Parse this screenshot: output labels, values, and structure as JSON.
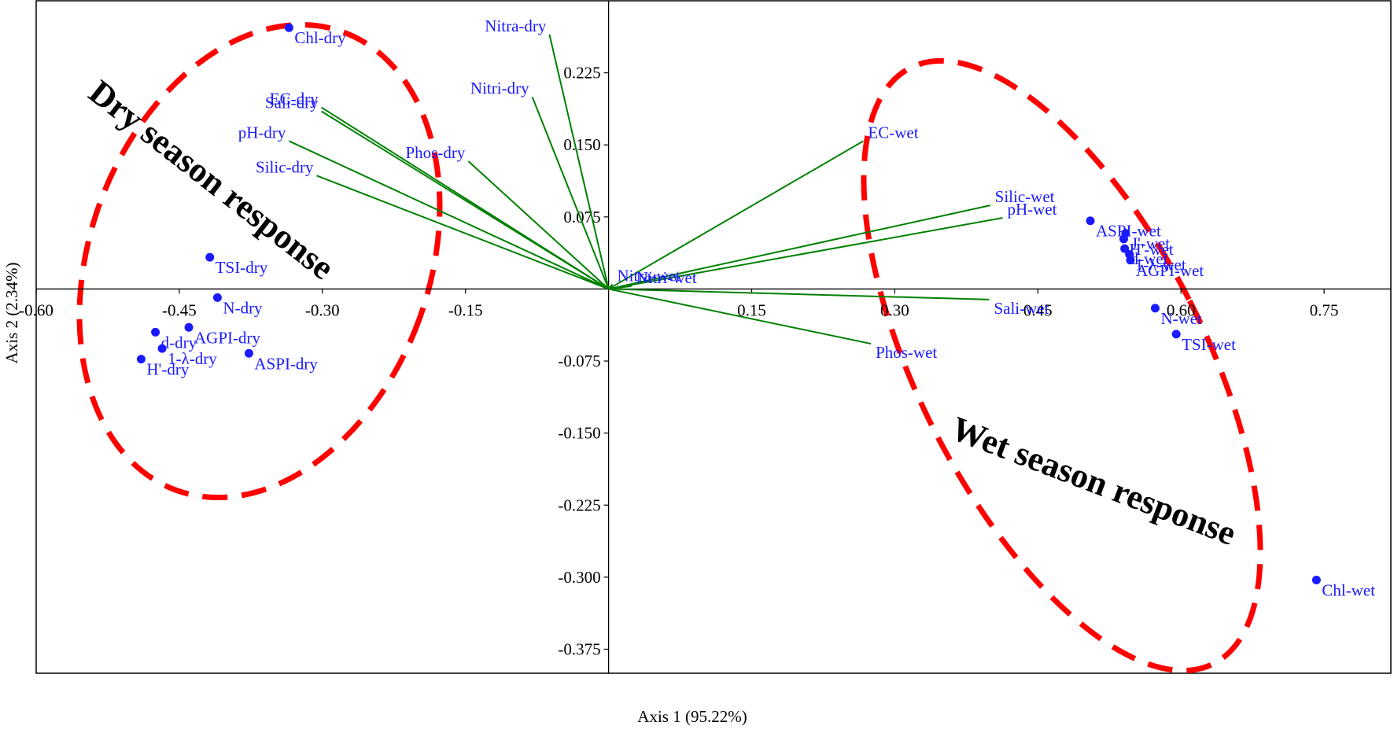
{
  "chart_data": {
    "type": "scatter",
    "subtype": "pca-biplot",
    "xlabel": "Axis 1 (95.22%)",
    "ylabel": "Axis 2 (2.34%)",
    "xlim": [
      -0.6,
      0.82
    ],
    "ylim": [
      -0.4,
      0.3
    ],
    "x_ticks": [
      {
        "value": -0.6,
        "label": "-0.60"
      },
      {
        "value": -0.45,
        "label": "-0.45"
      },
      {
        "value": -0.3,
        "label": "-0.30"
      },
      {
        "value": -0.15,
        "label": "-0.15"
      },
      {
        "value": 0.15,
        "label": "0.15"
      },
      {
        "value": 0.3,
        "label": "0.30"
      },
      {
        "value": 0.45,
        "label": "0.45"
      },
      {
        "value": 0.6,
        "label": "0.60"
      },
      {
        "value": 0.75,
        "label": "0.75"
      }
    ],
    "y_ticks": [
      {
        "value": 0.225,
        "label": "0.225"
      },
      {
        "value": 0.15,
        "label": "0.150"
      },
      {
        "value": 0.075,
        "label": "0.075"
      },
      {
        "value": -0.075,
        "label": "-0.075"
      },
      {
        "value": -0.15,
        "label": "-0.150"
      },
      {
        "value": -0.225,
        "label": "-0.225"
      },
      {
        "value": -0.3,
        "label": "-0.300"
      },
      {
        "value": -0.375,
        "label": "-0.375"
      }
    ],
    "grid": false,
    "colors": {
      "points": "#1a1aff",
      "labels": "#1a1aff",
      "vectors": "#008000",
      "ellipses": "#ff0000",
      "axes": "#000000"
    },
    "points": [
      {
        "label": "Chl-dry",
        "x": -0.335,
        "y": 0.272
      },
      {
        "label": "TSI-dry",
        "x": -0.418,
        "y": 0.033
      },
      {
        "label": "N-dry",
        "x": -0.41,
        "y": -0.009
      },
      {
        "label": "AGPI-dry",
        "x": -0.44,
        "y": -0.04
      },
      {
        "label": "d-dry",
        "x": -0.475,
        "y": -0.045
      },
      {
        "label": "H'-dry",
        "x": -0.49,
        "y": -0.073
      },
      {
        "label": "1-λ-dry",
        "x": -0.468,
        "y": -0.062
      },
      {
        "label": "ASPI-dry",
        "x": -0.377,
        "y": -0.067
      },
      {
        "label": "ASPI-wet",
        "x": 0.505,
        "y": 0.071
      },
      {
        "label": "J'-wet",
        "x": 0.542,
        "y": 0.058
      },
      {
        "label": "H'-wet",
        "x": 0.54,
        "y": 0.052
      },
      {
        "label": "d-wet",
        "x": 0.541,
        "y": 0.042
      },
      {
        "label": "AGPI-wet",
        "x": 0.547,
        "y": 0.03
      },
      {
        "label": "1-λ-wet",
        "x": 0.546,
        "y": 0.036
      },
      {
        "label": "N-wet",
        "x": 0.573,
        "y": -0.02
      },
      {
        "label": "TSI-wet",
        "x": 0.595,
        "y": -0.047
      },
      {
        "label": "Chl-wet",
        "x": 0.742,
        "y": -0.303
      }
    ],
    "vectors": [
      {
        "label": "Nitra-dry",
        "x": -0.062,
        "y": 0.265
      },
      {
        "label": "Nitri-dry",
        "x": -0.08,
        "y": 0.2
      },
      {
        "label": "EC-dry",
        "x": -0.301,
        "y": 0.189
      },
      {
        "label": "Sali-dry",
        "x": -0.301,
        "y": 0.185
      },
      {
        "label": "pH-dry",
        "x": -0.335,
        "y": 0.154
      },
      {
        "label": "Phos-dry",
        "x": -0.147,
        "y": 0.133
      },
      {
        "label": "Silic-dry",
        "x": -0.306,
        "y": 0.118
      },
      {
        "label": "EC-wet",
        "x": 0.267,
        "y": 0.154
      },
      {
        "label": "Silic-wet",
        "x": 0.4,
        "y": 0.087
      },
      {
        "label": "pH-wet",
        "x": 0.413,
        "y": 0.074
      },
      {
        "label": "Nitra-wet",
        "x": 0.004,
        "y": 0.005
      },
      {
        "label": "Nitri-wet",
        "x": 0.024,
        "y": 0.003
      },
      {
        "label": "Sali-wet",
        "x": 0.399,
        "y": -0.011
      },
      {
        "label": "Phos-wet",
        "x": 0.275,
        "y": -0.057
      }
    ],
    "annotations": [
      "Dry season response",
      "Wet season response"
    ]
  }
}
